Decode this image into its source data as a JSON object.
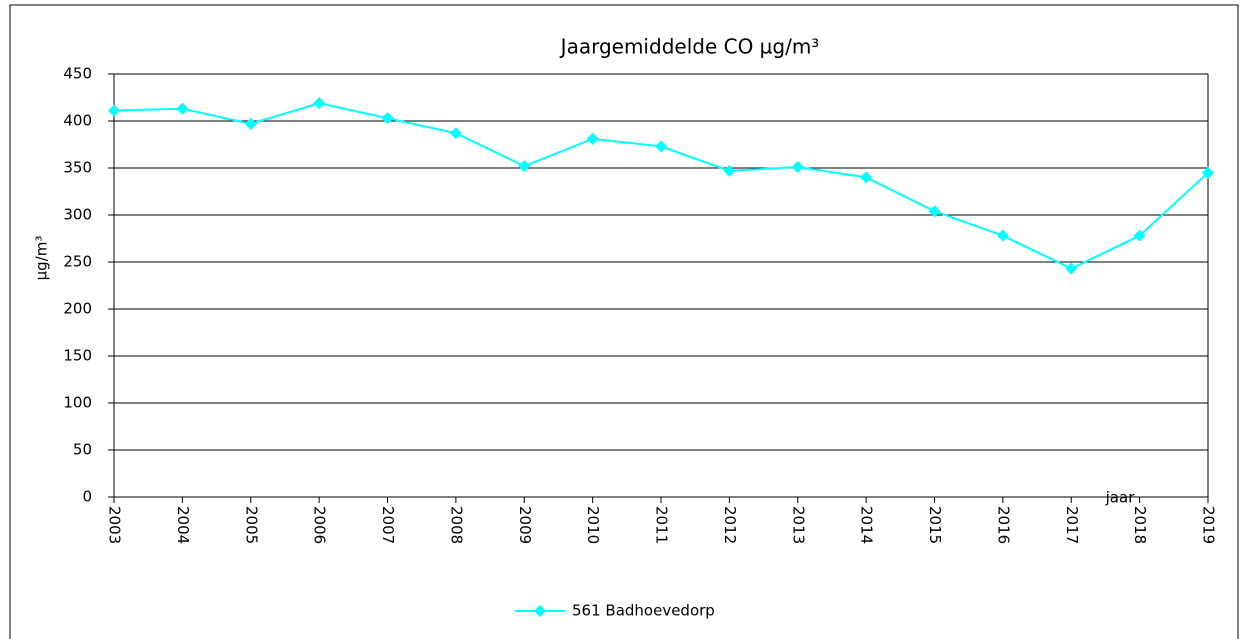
{
  "chart_data": {
    "type": "line",
    "title": "Jaargemiddelde CO µg/m³",
    "y_label": "µg/m³",
    "x_label": "jaar",
    "categories": [
      "2003",
      "2004",
      "2005",
      "2006",
      "2007",
      "2008",
      "2009",
      "2010",
      "2011",
      "2012",
      "2013",
      "2014",
      "2015",
      "2016",
      "2017",
      "2018",
      "2019"
    ],
    "series": [
      {
        "name": "561 Badhoevedorp",
        "color": "#00ffff",
        "values": [
          411,
          413,
          397,
          419,
          403,
          387,
          352,
          381,
          373,
          347,
          351,
          340,
          304,
          278,
          243,
          278,
          345
        ]
      }
    ],
    "ylim": [
      0,
      450
    ],
    "yticks": [
      0,
      50,
      100,
      150,
      200,
      250,
      300,
      350,
      400,
      450
    ],
    "grid": true,
    "legend": "bottom"
  }
}
